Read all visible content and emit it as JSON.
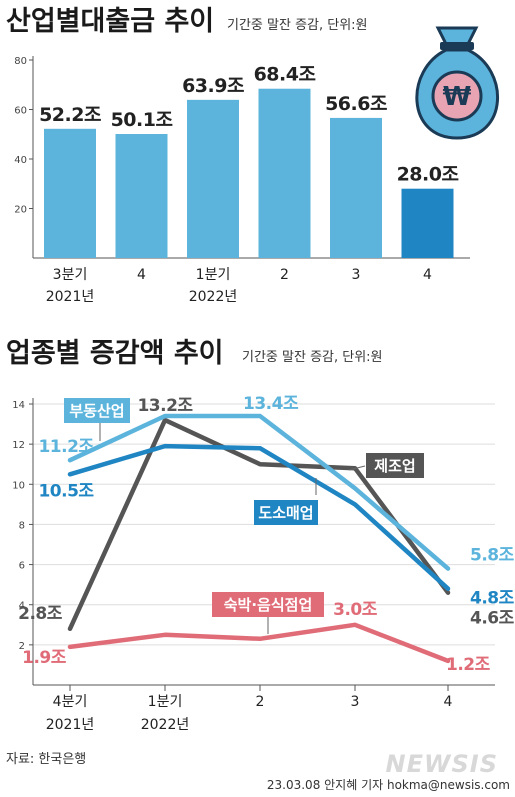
{
  "bar_section": {
    "title": "산업별대출금 추이",
    "subtitle": "기간중 말잔 증감, 단위:원",
    "money_bag_symbol": "₩"
  },
  "line_section": {
    "title": "업종별 증감액 추이",
    "subtitle": "기간중 말잔 증감, 단위:원"
  },
  "footer": {
    "source": "자료: 한국은행",
    "credit": "23.03.08 안지혜 기자 hokma@newsis.com",
    "logo": "NEWSIS"
  },
  "chart_data": [
    {
      "type": "bar",
      "categories": [
        [
          "3분기",
          "2021년"
        ],
        [
          "4"
        ],
        [
          "1분기",
          "2022년"
        ],
        [
          "2"
        ],
        [
          "3"
        ],
        [
          "4"
        ]
      ],
      "values": [
        52.2,
        50.1,
        63.9,
        68.4,
        56.6,
        28.0
      ],
      "value_labels": [
        "52.2조",
        "50.1조",
        "63.9조",
        "68.4조",
        "56.6조",
        "28.0조"
      ],
      "yticks": [
        20,
        40,
        60,
        80
      ],
      "ylim": [
        0,
        80
      ],
      "colors": {
        "default": "#5cb4dc",
        "highlight": "#1f86c3"
      },
      "highlight_index": 5
    },
    {
      "type": "line",
      "categories": [
        [
          "4분기",
          "2021년"
        ],
        [
          "1분기",
          "2022년"
        ],
        [
          "2"
        ],
        [
          "3"
        ],
        [
          "4"
        ]
      ],
      "yticks": [
        2,
        4,
        6,
        8,
        10,
        12,
        14
      ],
      "ylim": [
        0,
        14
      ],
      "series": [
        {
          "name": "부동산업",
          "color": "#5cb4dc",
          "values": [
            11.2,
            13.4,
            13.4,
            9.8,
            5.8
          ],
          "labels": [
            "11.2조",
            "13.4조",
            null,
            null,
            "5.8조"
          ]
        },
        {
          "name": "도소매업",
          "color": "#1f86c3",
          "values": [
            10.5,
            11.9,
            11.8,
            9.0,
            4.8
          ],
          "labels": [
            "10.5조",
            null,
            null,
            null,
            "4.8조"
          ]
        },
        {
          "name": "제조업",
          "color": "#555555",
          "values": [
            2.8,
            13.2,
            11.0,
            10.8,
            4.6
          ],
          "labels": [
            "2.8조",
            "13.2조",
            null,
            null,
            "4.6조"
          ]
        },
        {
          "name": "숙박·음식점업",
          "color": "#e06c78",
          "values": [
            1.9,
            2.5,
            2.3,
            3.0,
            1.2
          ],
          "labels": [
            "1.9조",
            null,
            null,
            "3.0조",
            "1.2조"
          ]
        }
      ]
    }
  ]
}
